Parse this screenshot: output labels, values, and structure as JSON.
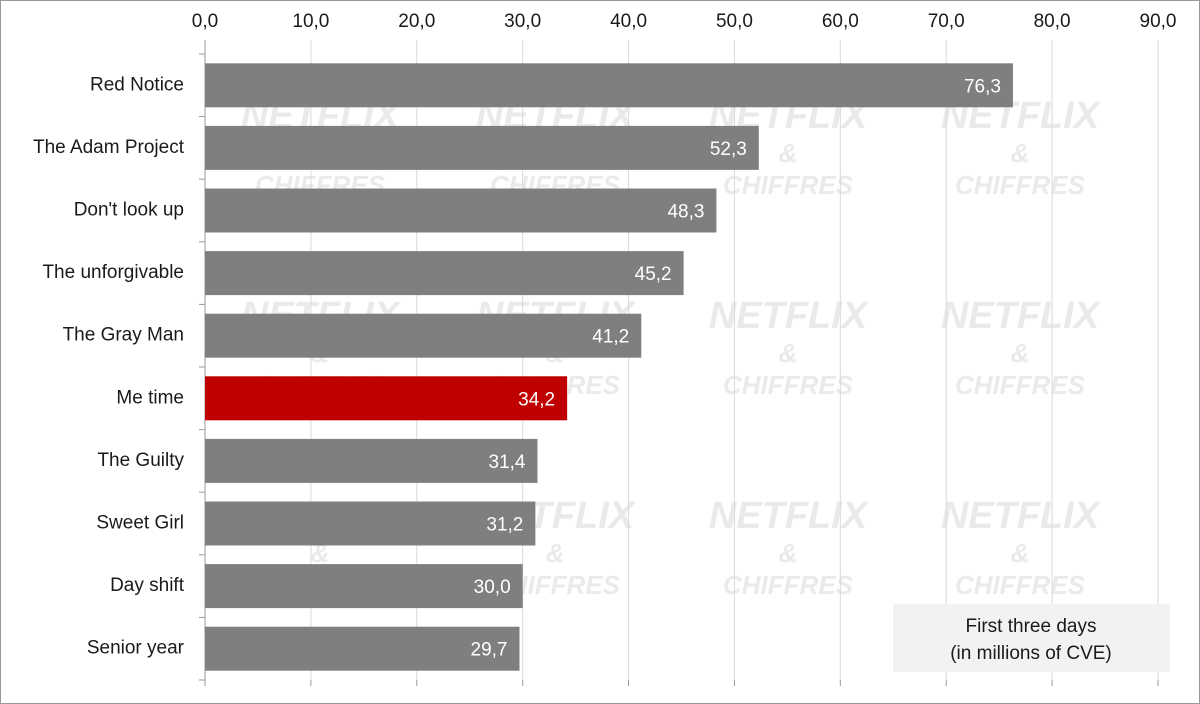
{
  "chart_data": {
    "type": "barh",
    "categories": [
      "Red Notice",
      "The Adam Project",
      "Don't look up",
      "The unforgivable",
      "The Gray Man",
      "Me time",
      "The Guilty",
      "Sweet Girl",
      "Day shift",
      "Senior year"
    ],
    "values": [
      76.3,
      52.3,
      48.3,
      45.2,
      41.2,
      34.2,
      31.4,
      31.2,
      30.0,
      29.7
    ],
    "value_labels": [
      "76,3",
      "52,3",
      "48,3",
      "45,2",
      "41,2",
      "34,2",
      "31,4",
      "31,2",
      "30,0",
      "29,7"
    ],
    "colors": [
      "#7f7f7f",
      "#7f7f7f",
      "#7f7f7f",
      "#7f7f7f",
      "#7f7f7f",
      "#c00000",
      "#7f7f7f",
      "#7f7f7f",
      "#7f7f7f",
      "#7f7f7f"
    ],
    "xlim": [
      0,
      90
    ],
    "xticks": [
      {
        "value": 0,
        "label": "0,0"
      },
      {
        "value": 10,
        "label": "10,0"
      },
      {
        "value": 20,
        "label": "20,0"
      },
      {
        "value": 30,
        "label": "30,0"
      },
      {
        "value": 40,
        "label": "40,0"
      },
      {
        "value": 50,
        "label": "50,0"
      },
      {
        "value": 60,
        "label": "60,0"
      },
      {
        "value": 70,
        "label": "70,0"
      },
      {
        "value": 80,
        "label": "80,0"
      },
      {
        "value": 90,
        "label": "90,0"
      }
    ],
    "grid": true,
    "annotation": [
      "First three days",
      "(in millions of CVE)"
    ],
    "watermark": [
      "NETFLIX",
      "&",
      "CHIFFRES"
    ]
  }
}
